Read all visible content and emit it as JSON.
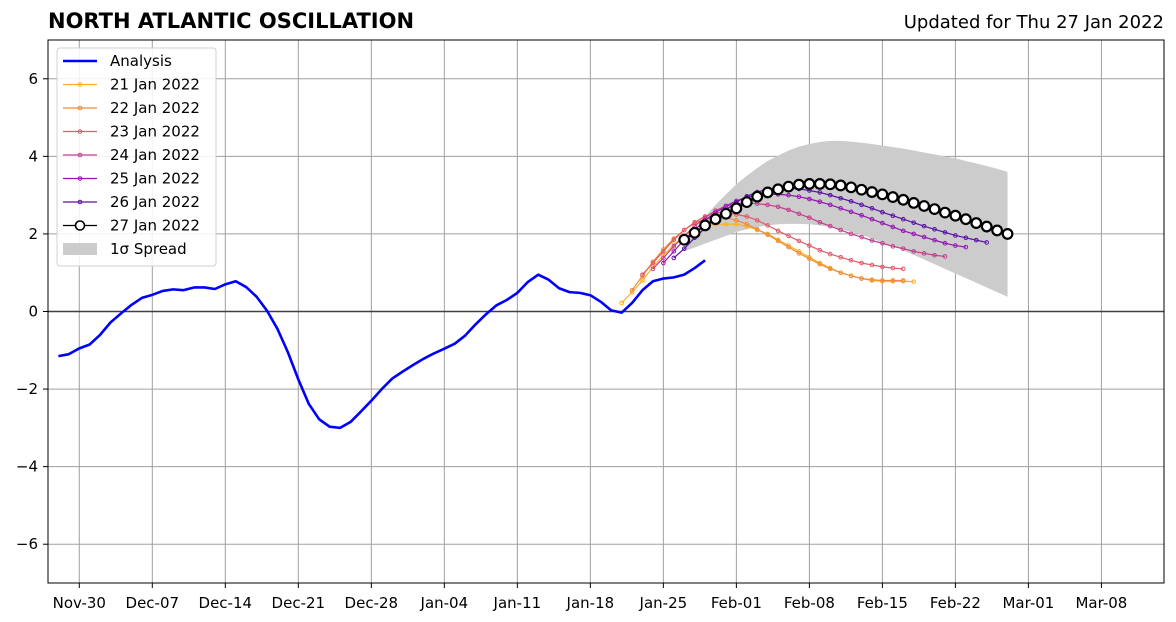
{
  "chart_data": {
    "type": "line",
    "title": "NORTH ATLANTIC OSCILLATION",
    "subtitle": "Updated for Thu 27 Jan 2022",
    "xlabel": "",
    "ylabel": "",
    "x_range": [
      "2021-11-27",
      "2022-03-14"
    ],
    "ylim": [
      -7,
      7
    ],
    "grid": true,
    "legend_position": "top-left",
    "x_ticks": [
      {
        "date": "2021-11-30",
        "label": "Nov-30"
      },
      {
        "date": "2021-12-07",
        "label": "Dec-07"
      },
      {
        "date": "2021-12-14",
        "label": "Dec-14"
      },
      {
        "date": "2021-12-21",
        "label": "Dec-21"
      },
      {
        "date": "2021-12-28",
        "label": "Dec-28"
      },
      {
        "date": "2022-01-04",
        "label": "Jan-04"
      },
      {
        "date": "2022-01-11",
        "label": "Jan-11"
      },
      {
        "date": "2022-01-18",
        "label": "Jan-18"
      },
      {
        "date": "2022-01-25",
        "label": "Jan-25"
      },
      {
        "date": "2022-02-01",
        "label": "Feb-01"
      },
      {
        "date": "2022-02-08",
        "label": "Feb-08"
      },
      {
        "date": "2022-02-15",
        "label": "Feb-15"
      },
      {
        "date": "2022-02-22",
        "label": "Feb-22"
      },
      {
        "date": "2022-03-01",
        "label": "Mar-01"
      },
      {
        "date": "2022-03-08",
        "label": "Mar-08"
      }
    ],
    "y_ticks": [
      {
        "value": 6,
        "label": "6"
      },
      {
        "value": 4,
        "label": "4"
      },
      {
        "value": 2,
        "label": "2"
      },
      {
        "value": 0,
        "label": "0"
      },
      {
        "value": -2,
        "label": "−2"
      },
      {
        "value": -4,
        "label": "−4"
      },
      {
        "value": -6,
        "label": "−6"
      }
    ],
    "analysis": {
      "name": "Analysis",
      "color": "#0000ff",
      "start": "2021-11-28",
      "values": [
        -1.15,
        -1.1,
        -0.95,
        -0.85,
        -0.6,
        -0.28,
        -0.05,
        0.17,
        0.35,
        0.43,
        0.53,
        0.57,
        0.55,
        0.62,
        0.62,
        0.58,
        0.7,
        0.78,
        0.63,
        0.38,
        0.02,
        -0.45,
        -1.05,
        -1.75,
        -2.38,
        -2.78,
        -2.97,
        -3.0,
        -2.85,
        -2.58,
        -2.3,
        -2.0,
        -1.73,
        -1.55,
        -1.38,
        -1.22,
        -1.08,
        -0.96,
        -0.83,
        -0.62,
        -0.33,
        -0.07,
        0.16,
        0.3,
        0.48,
        0.76,
        0.95,
        0.82,
        0.6,
        0.5,
        0.48,
        0.42,
        0.25,
        0.03,
        -0.03,
        0.22,
        0.55,
        0.78,
        0.85,
        0.88,
        0.95,
        1.12,
        1.32
      ]
    },
    "forecasts": [
      {
        "name": "21 Jan 2022",
        "color": "#ffb020",
        "start": "2022-01-21",
        "values": [
          0.22,
          0.5,
          0.8,
          1.15,
          1.45,
          1.72,
          1.95,
          2.1,
          2.2,
          2.25,
          2.25,
          2.25,
          2.2,
          2.1,
          2.0,
          1.85,
          1.7,
          1.55,
          1.4,
          1.25,
          1.12,
          1.0,
          0.92,
          0.85,
          0.8,
          0.78,
          0.78,
          0.78,
          0.77
        ]
      },
      {
        "name": "22 Jan 2022",
        "color": "#f08a3a",
        "start": "2022-01-22",
        "values": [
          0.55,
          0.92,
          1.28,
          1.6,
          1.88,
          2.1,
          2.28,
          2.38,
          2.42,
          2.42,
          2.35,
          2.25,
          2.12,
          1.98,
          1.82,
          1.66,
          1.5,
          1.36,
          1.22,
          1.1,
          1.0,
          0.92,
          0.85,
          0.82,
          0.8,
          0.8,
          0.8
        ]
      },
      {
        "name": "23 Jan 2022",
        "color": "#e05a6a",
        "start": "2022-01-23",
        "values": [
          0.95,
          1.25,
          1.55,
          1.85,
          2.1,
          2.3,
          2.45,
          2.55,
          2.55,
          2.5,
          2.45,
          2.35,
          2.22,
          2.08,
          1.95,
          1.82,
          1.7,
          1.58,
          1.48,
          1.4,
          1.32,
          1.25,
          1.2,
          1.15,
          1.12,
          1.1
        ]
      },
      {
        "name": "24 Jan 2022",
        "color": "#c43d8d",
        "start": "2022-01-24",
        "values": [
          1.1,
          1.38,
          1.68,
          1.95,
          2.2,
          2.42,
          2.6,
          2.72,
          2.78,
          2.8,
          2.78,
          2.75,
          2.7,
          2.62,
          2.52,
          2.42,
          2.3,
          2.2,
          2.1,
          2.0,
          1.92,
          1.83,
          1.76,
          1.68,
          1.62,
          1.55,
          1.5,
          1.45,
          1.42
        ]
      },
      {
        "name": "25 Jan 2022",
        "color": "#9414b4",
        "start": "2022-01-25",
        "values": [
          1.25,
          1.55,
          1.85,
          2.1,
          2.35,
          2.55,
          2.72,
          2.85,
          2.95,
          3.0,
          3.02,
          3.02,
          3.0,
          2.96,
          2.9,
          2.83,
          2.75,
          2.66,
          2.57,
          2.48,
          2.38,
          2.28,
          2.18,
          2.08,
          2.0,
          1.92,
          1.84,
          1.76,
          1.7,
          1.66
        ]
      },
      {
        "name": "26 Jan 2022",
        "color": "#5a0fa8",
        "start": "2022-01-26",
        "values": [
          1.38,
          1.62,
          1.9,
          2.15,
          2.4,
          2.62,
          2.82,
          2.97,
          3.08,
          3.15,
          3.18,
          3.18,
          3.16,
          3.12,
          3.07,
          3.0,
          2.92,
          2.84,
          2.75,
          2.66,
          2.56,
          2.47,
          2.38,
          2.29,
          2.2,
          2.12,
          2.04,
          1.96,
          1.9,
          1.84,
          1.78
        ]
      },
      {
        "name": "27 Jan 2022",
        "color": "#000000",
        "start": "2022-01-27",
        "values": [
          1.85,
          2.03,
          2.22,
          2.38,
          2.52,
          2.66,
          2.82,
          2.96,
          3.07,
          3.15,
          3.22,
          3.27,
          3.29,
          3.29,
          3.28,
          3.25,
          3.2,
          3.14,
          3.08,
          3.02,
          2.95,
          2.88,
          2.8,
          2.72,
          2.64,
          2.55,
          2.47,
          2.38,
          2.28,
          2.19,
          2.09,
          2.0
        ]
      }
    ],
    "spread": {
      "name": "1σ Spread",
      "color": "#cccccc",
      "start": "2022-01-27",
      "upper": [
        1.75,
        2.1,
        2.45,
        2.75,
        3.02,
        3.28,
        3.5,
        3.7,
        3.88,
        4.02,
        4.15,
        4.25,
        4.32,
        4.37,
        4.4,
        4.4,
        4.38,
        4.35,
        4.32,
        4.28,
        4.24,
        4.2,
        4.15,
        4.1,
        4.05,
        4.0,
        3.95,
        3.88,
        3.82,
        3.75,
        3.68,
        3.6
      ],
      "lower": [
        1.55,
        1.65,
        1.75,
        1.85,
        1.95,
        2.05,
        2.12,
        2.18,
        2.22,
        2.25,
        2.26,
        2.26,
        2.25,
        2.22,
        2.18,
        2.12,
        2.05,
        1.98,
        1.88,
        1.78,
        1.68,
        1.58,
        1.46,
        1.34,
        1.22,
        1.1,
        0.98,
        0.86,
        0.74,
        0.62,
        0.5,
        0.38
      ]
    },
    "legend": [
      {
        "key": "analysis",
        "label": "Analysis"
      },
      {
        "key": "f0",
        "label": "21 Jan 2022"
      },
      {
        "key": "f1",
        "label": "22 Jan 2022"
      },
      {
        "key": "f2",
        "label": "23 Jan 2022"
      },
      {
        "key": "f3",
        "label": "24 Jan 2022"
      },
      {
        "key": "f4",
        "label": "25 Jan 2022"
      },
      {
        "key": "f5",
        "label": "26 Jan 2022"
      },
      {
        "key": "f6",
        "label": "27 Jan 2022"
      },
      {
        "key": "spread",
        "label": "1σ Spread"
      }
    ]
  }
}
